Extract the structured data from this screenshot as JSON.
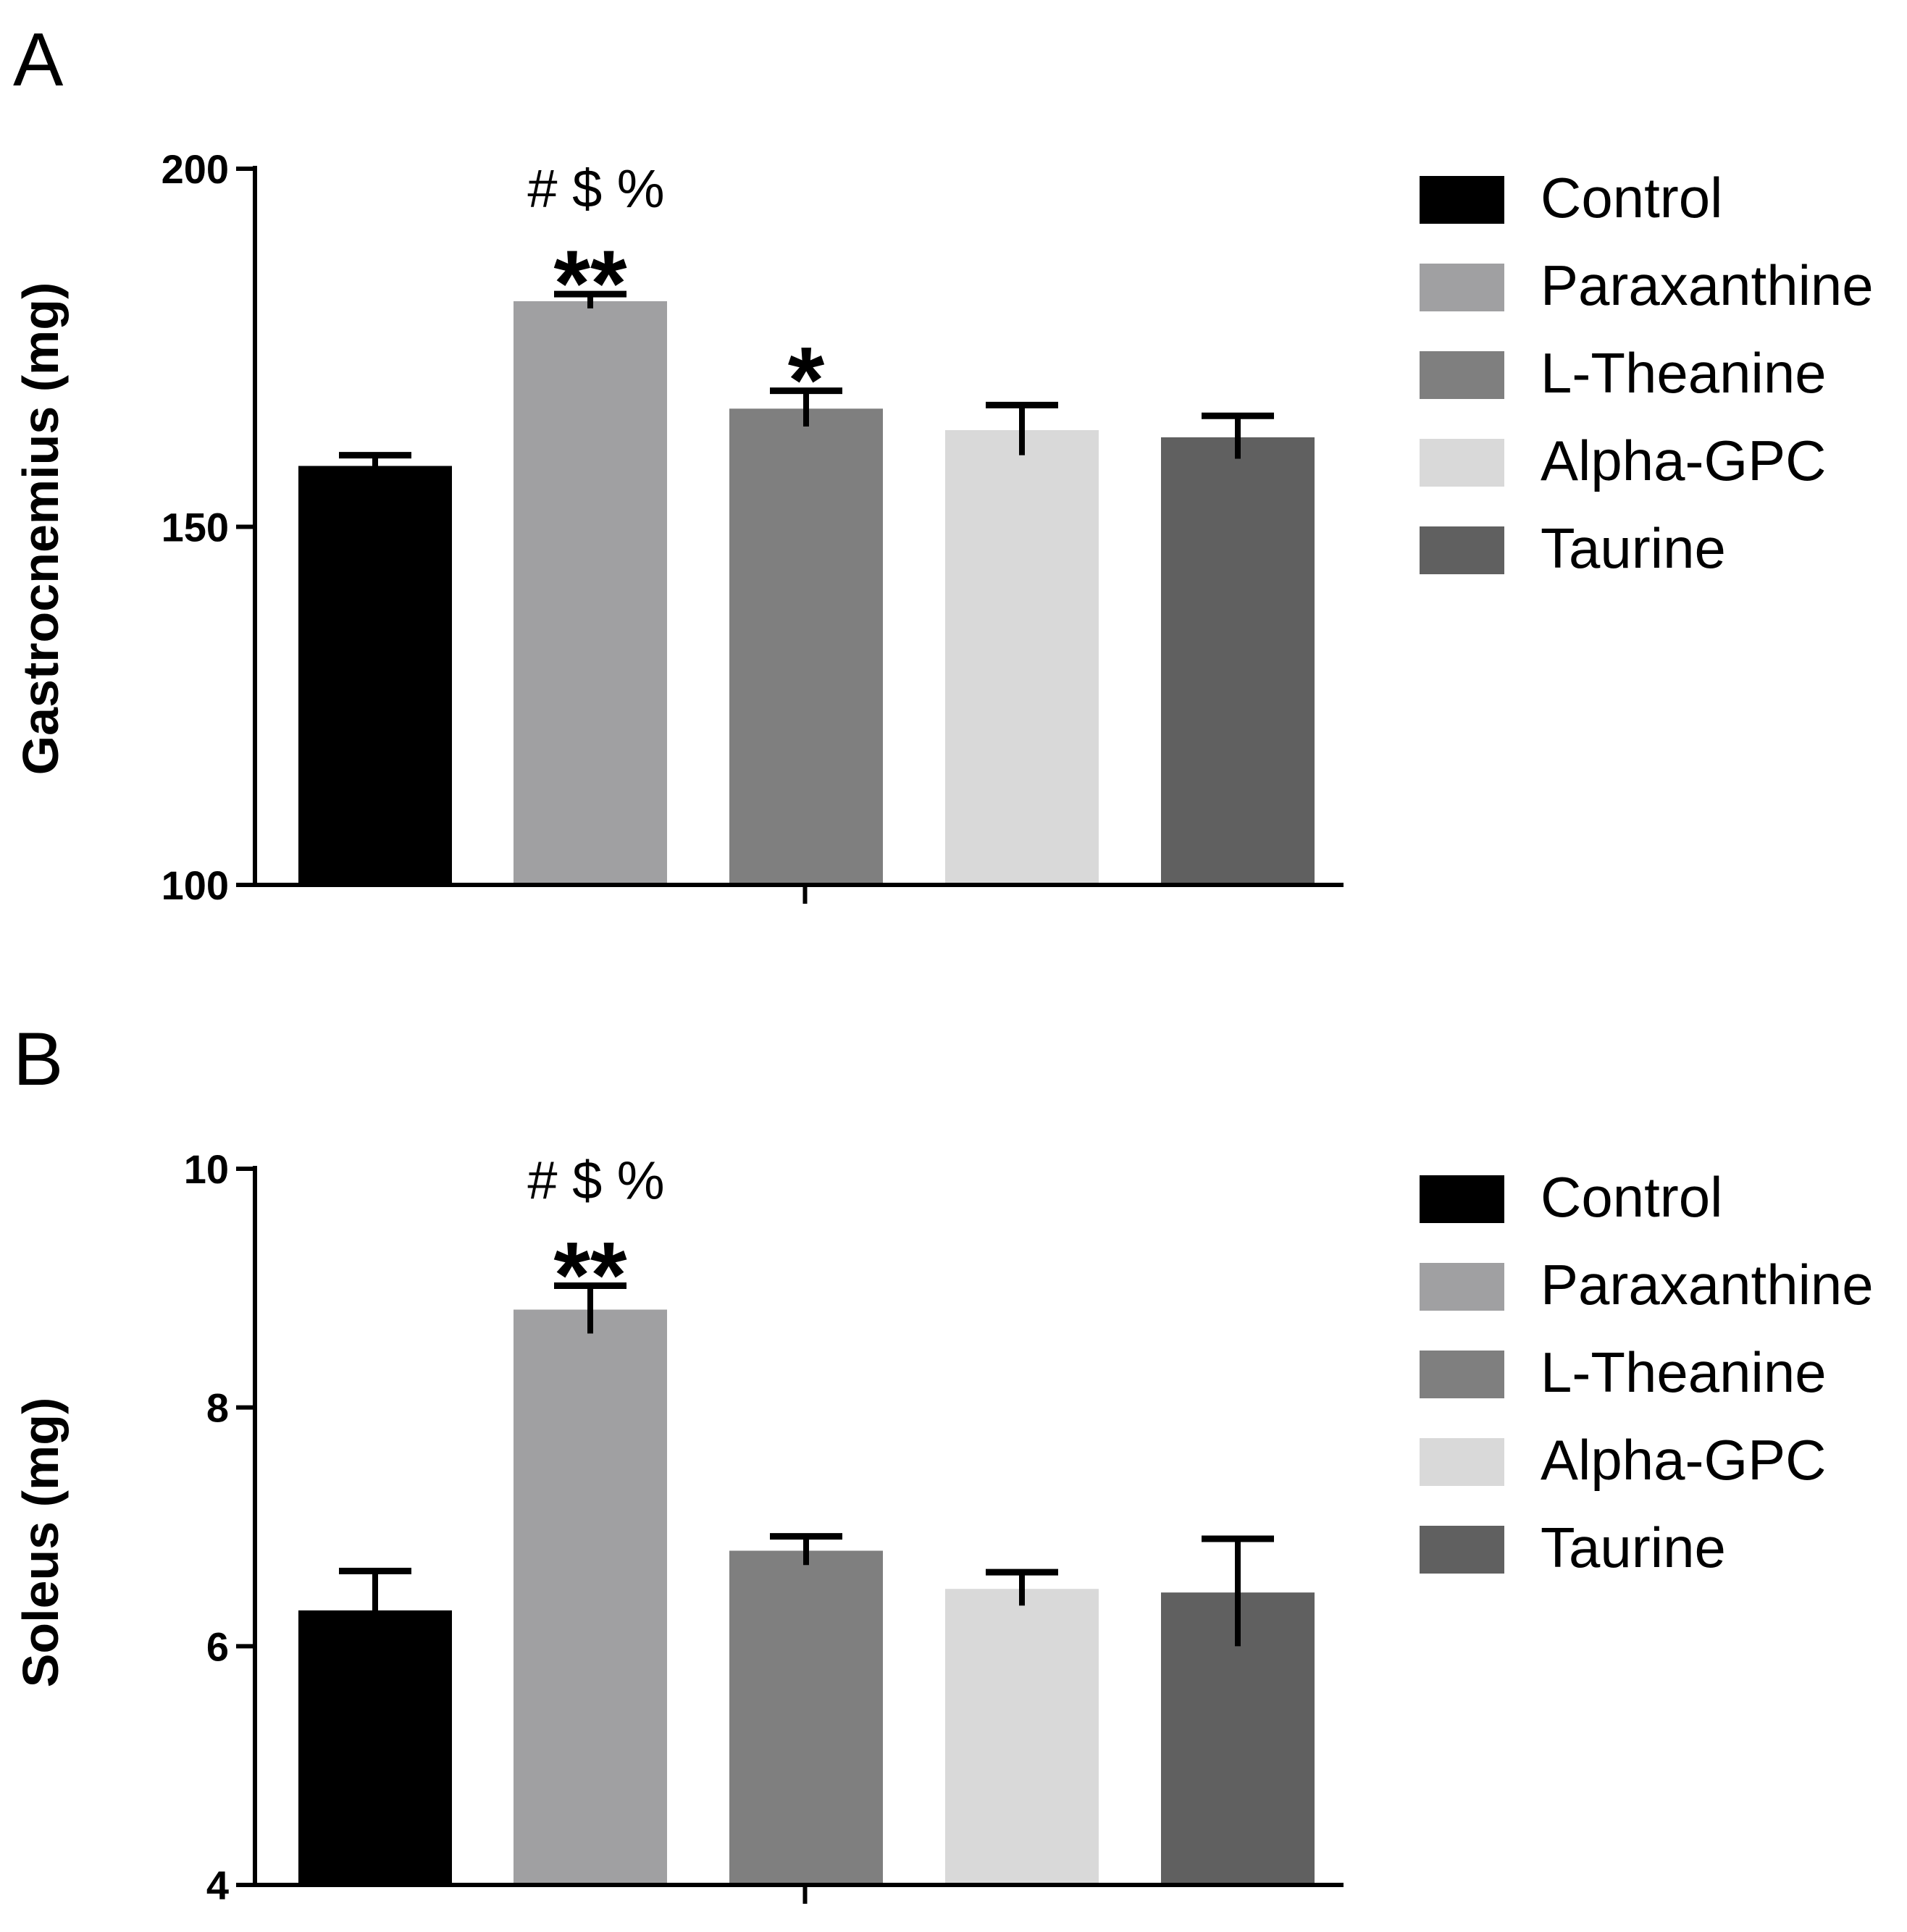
{
  "chart_data": [
    {
      "type": "bar",
      "panel_label": "A",
      "title": "",
      "xlabel": "",
      "ylabel": "Gastrocnemius (mg)",
      "ylim": [
        100,
        200
      ],
      "yticks": [
        "100",
        "150",
        "200"
      ],
      "categories": [
        "Control",
        "Paraxanthine",
        "L-Theanine",
        "Alpha-GPC",
        "Taurine"
      ],
      "values": [
        158.5,
        181.5,
        166.5,
        163.5,
        162.5
      ],
      "errors": [
        1.5,
        1.0,
        2.5,
        3.5,
        3.0
      ],
      "colors": [
        "#000000",
        "#a0a0a2",
        "#7f7f7f",
        "#d9d9d9",
        "#606060"
      ],
      "annotations": [
        {
          "category": "Paraxanthine",
          "symbols": "# $ %",
          "stars": "**"
        },
        {
          "category": "L-Theanine",
          "symbols": "",
          "stars": "*"
        }
      ],
      "legend": [
        "Control",
        "Paraxanthine",
        "L-Theanine",
        "Alpha-GPC",
        "Taurine"
      ]
    },
    {
      "type": "bar",
      "panel_label": "B",
      "title": "",
      "xlabel": "",
      "ylabel": "Soleus (mg)",
      "ylim": [
        4,
        10
      ],
      "yticks": [
        "4",
        "6",
        "8",
        "10"
      ],
      "categories": [
        "Control",
        "Paraxanthine",
        "L-Theanine",
        "Alpha-GPC",
        "Taurine"
      ],
      "values": [
        6.3,
        8.82,
        6.8,
        6.48,
        6.45
      ],
      "errors": [
        0.33,
        0.2,
        0.12,
        0.14,
        0.45
      ],
      "colors": [
        "#000000",
        "#a0a0a2",
        "#7f7f7f",
        "#d9d9d9",
        "#606060"
      ],
      "annotations": [
        {
          "category": "Paraxanthine",
          "symbols": "# $ %",
          "stars": "**"
        }
      ],
      "legend": [
        "Control",
        "Paraxanthine",
        "L-Theanine",
        "Alpha-GPC",
        "Taurine"
      ]
    }
  ]
}
